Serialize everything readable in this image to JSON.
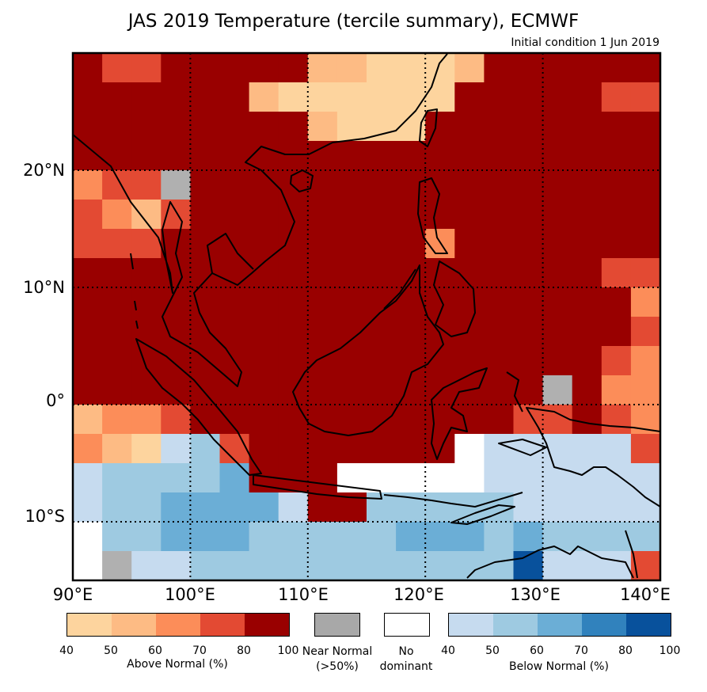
{
  "title": "JAS 2019 Temperature (tercile summary), ECMWF",
  "subtitle": "Initial condition 1 Jun 2019",
  "lat_labels": [
    "20°N",
    "10°N",
    "0°",
    "10°S"
  ],
  "lon_labels": [
    "90°E",
    "100°E",
    "110°E",
    "120°E",
    "130°E",
    "140°E"
  ],
  "legend": {
    "above": {
      "caption": "Above Normal (%)",
      "ticks": [
        "40",
        "50",
        "60",
        "70",
        "80",
        "100"
      ],
      "colors": [
        "#fdd49e",
        "#fdbb84",
        "#fc8d59",
        "#e34a33",
        "#990000"
      ]
    },
    "near": {
      "line1": "Near Normal",
      "line2": "(>50%)",
      "color": "#a8a8a8"
    },
    "none": {
      "line1": "No",
      "line2": "dominant",
      "color": "#ffffff"
    },
    "below": {
      "caption": "Below Normal (%)",
      "ticks": [
        "40",
        "50",
        "60",
        "70",
        "80",
        "100"
      ],
      "colors": [
        "#c6dbef",
        "#9ecae1",
        "#6baed6",
        "#3182bd",
        "#08519c"
      ]
    }
  },
  "map": {
    "extent": {
      "lon_min": 90,
      "lon_max": 140,
      "lat_min": -15,
      "lat_max": 30
    },
    "grid_lons": [
      100,
      110,
      120,
      130,
      140
    ],
    "grid_lats": [
      20,
      10,
      0,
      -10
    ],
    "cell_deg": 2.5,
    "colors": {
      "A": "#990000",
      "B": "#e34a33",
      "C": "#fc8d59",
      "D": "#fdbb84",
      "E": "#fdd49e",
      "a": "#c6dbef",
      "b": "#9ecae1",
      "c": "#6baed6",
      "d": "#3182bd",
      "e": "#08519c",
      "g": "#b0b0b0",
      "w": "#ffffff"
    },
    "rows": [
      "ABBAAAAADDEEEDAAAAAAAA",
      "AAAAAADEEEEEEAAAAABBAA",
      "AAAAAAAADEEEAAAAAAAAAA",
      "AAAAAAAAAAAAAAAAAAAAAA",
      "CBBgAAAAAAAAAAAAAAAAAA",
      "BCDBAAAAAAAAAAAAAAAAAA",
      "BBBAAAAAAAAACAAAAAAAAA",
      "AAAAAAAAAAAAAAAAAABBAA",
      "AAAAAAAAAAAAAAAAAAACBC",
      "AAAAAAAAAAAAAAAAAAABBC",
      "AAAAAAAAAAAAAAAAAABCBB",
      "AAAAAAAAAAAAAAAAgACCCB",
      "DCCBAAAAAAAAAAABBABCDB",
      "CDEabBAAAAAAAwaaaaaBCw",
      "abbbbcAAAwwwwwaaaaaaaw",
      "abbccccaAAbbbbbaaaaaaa",
      "wbbcccbbbbbcccbcbbbbwa",
      "wgaabbbbbbbbbbbeaaaBww",
      "wwabbbbaaaabggaaaaaDCw",
      "waaaaaaaaaaggaBwwwDCDw"
    ]
  }
}
